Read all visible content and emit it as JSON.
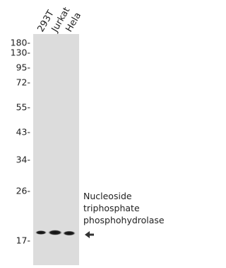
{
  "lanes": [
    "293T",
    "Jurkat",
    "Hela"
  ],
  "markers": [
    "180-",
    "130-",
    "95-",
    "72-",
    "55-",
    "43-",
    "34-",
    "26-",
    "17-"
  ],
  "target_label": [
    "Nucleoside",
    "triphosphate",
    "phosphohydrolase"
  ]
}
